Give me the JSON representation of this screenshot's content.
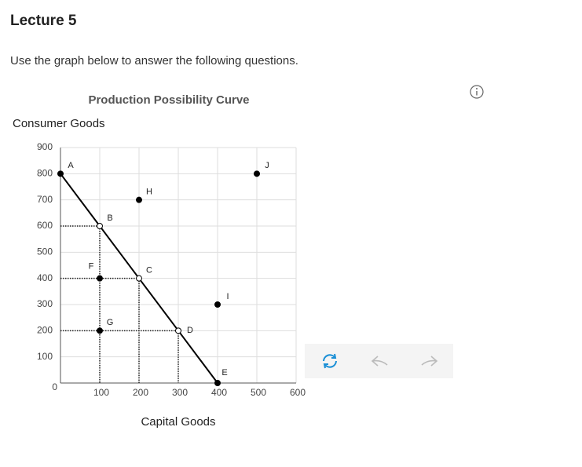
{
  "header": {
    "title": "Lecture 5",
    "instruction": "Use the graph below to answer the following questions."
  },
  "chart_data": {
    "type": "scatter",
    "title": "Production Possibility Curve",
    "y_label": "Consumer Goods",
    "x_label": "Capital Goods",
    "xlim": [
      0,
      600
    ],
    "ylim": [
      0,
      900
    ],
    "xticks": [
      100,
      200,
      300,
      400,
      500,
      600
    ],
    "yticks": [
      0,
      100,
      200,
      300,
      400,
      500,
      600,
      700,
      800,
      900
    ],
    "grid": true,
    "guides": true,
    "series": [
      {
        "x": [
          0,
          100,
          200,
          300,
          400
        ],
        "values": [
          800,
          600,
          400,
          200,
          0
        ],
        "color": "#000000"
      }
    ],
    "points": [
      {
        "label": "A",
        "x": 0,
        "y": 800,
        "filled": true
      },
      {
        "label": "B",
        "x": 100,
        "y": 600,
        "filled": false
      },
      {
        "label": "C",
        "x": 200,
        "y": 400,
        "filled": false
      },
      {
        "label": "D",
        "x": 300,
        "y": 200,
        "filled": false
      },
      {
        "label": "E",
        "x": 400,
        "y": 0,
        "filled": true
      },
      {
        "label": "F",
        "x": 100,
        "y": 400,
        "filled": true
      },
      {
        "label": "G",
        "x": 100,
        "y": 200,
        "filled": true
      },
      {
        "label": "H",
        "x": 200,
        "y": 700,
        "filled": true
      },
      {
        "label": "I",
        "x": 400,
        "y": 300,
        "filled": true
      },
      {
        "label": "J",
        "x": 500,
        "y": 800,
        "filled": true
      }
    ]
  }
}
